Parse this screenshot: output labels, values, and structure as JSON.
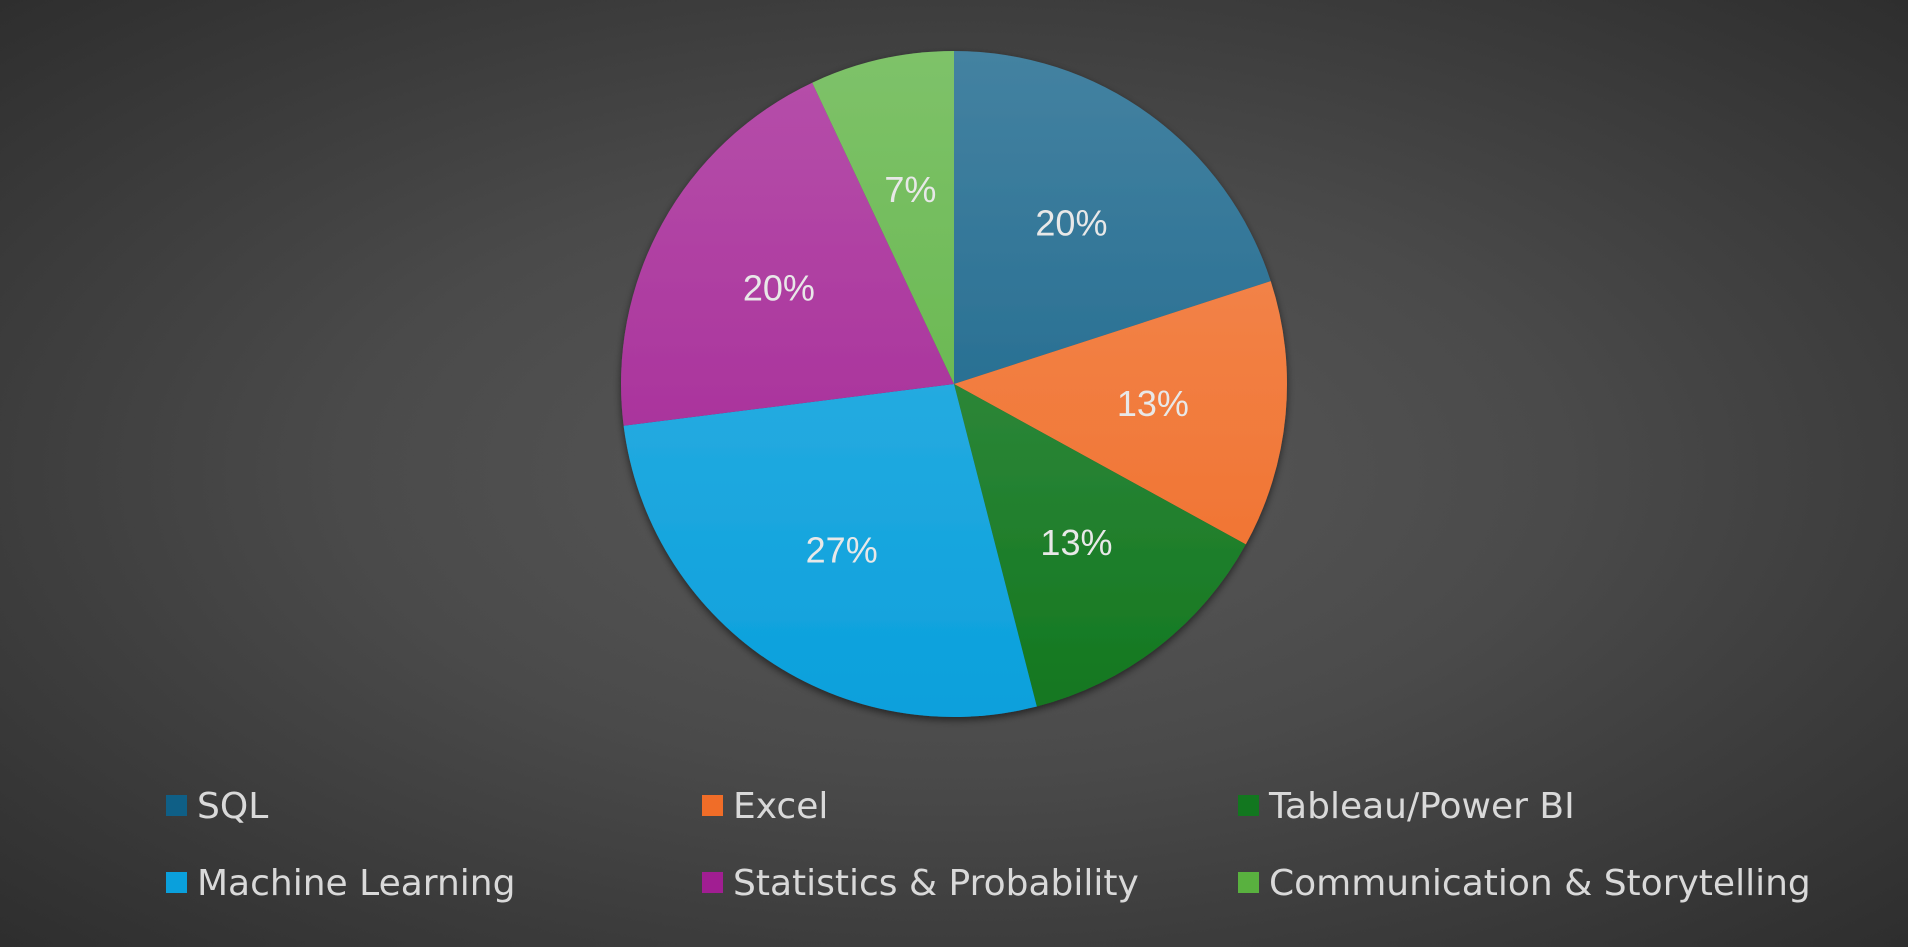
{
  "chart_data": {
    "type": "pie",
    "categories": [
      "SQL",
      "Excel",
      "Tableau/Power BI",
      "Machine Learning",
      "Statistics & Probability",
      "Communication & Storytelling"
    ],
    "values": [
      20,
      13,
      13,
      27,
      20,
      7
    ],
    "labels": [
      "20%",
      "13%",
      "13%",
      "27%",
      "20%",
      "7%"
    ],
    "colors": [
      "#0f5f86",
      "#f06d28",
      "#12771f",
      "#0aa0dc",
      "#a11e92",
      "#59b13f"
    ],
    "start_angle": "top (12 o'clock)",
    "direction": "clockwise",
    "legend_position": "bottom",
    "title": ""
  }
}
